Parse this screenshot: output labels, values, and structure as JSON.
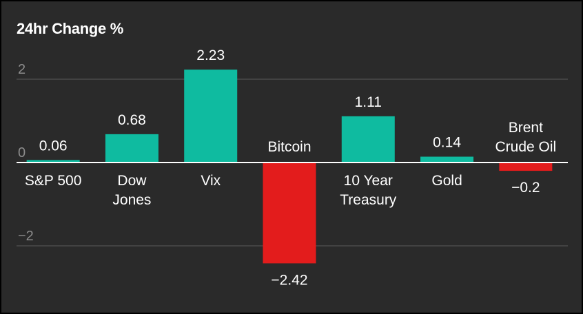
{
  "chart_data": {
    "type": "bar",
    "title": "24hr Change %",
    "categories": [
      [
        "S&P 500"
      ],
      [
        "Dow",
        "Jones"
      ],
      [
        "Vix"
      ],
      [
        "Bitcoin"
      ],
      [
        "10 Year",
        "Treasury"
      ],
      [
        "Gold"
      ],
      [
        "Brent",
        "Crude Oil"
      ]
    ],
    "values": [
      0.06,
      0.68,
      2.23,
      -2.42,
      1.11,
      0.14,
      -0.2
    ],
    "value_labels": [
      "0.06",
      "0.68",
      "2.23",
      "−2.42",
      "1.11",
      "0.14",
      "−0.2"
    ],
    "yticks": [
      {
        "value": 2,
        "label": "2"
      },
      {
        "value": 0,
        "label": "0"
      },
      {
        "value": -2,
        "label": "−2"
      }
    ],
    "ylim": [
      -2.9,
      2.6
    ],
    "grid": true,
    "colors": {
      "positive": "#0fbba0",
      "negative": "#e31c1c",
      "background": "#2a2a2a",
      "gridline": "#4a4a4a",
      "zero_line": "#ffffff",
      "text": "#ffffff",
      "tick_text": "#8c8c8c"
    }
  }
}
